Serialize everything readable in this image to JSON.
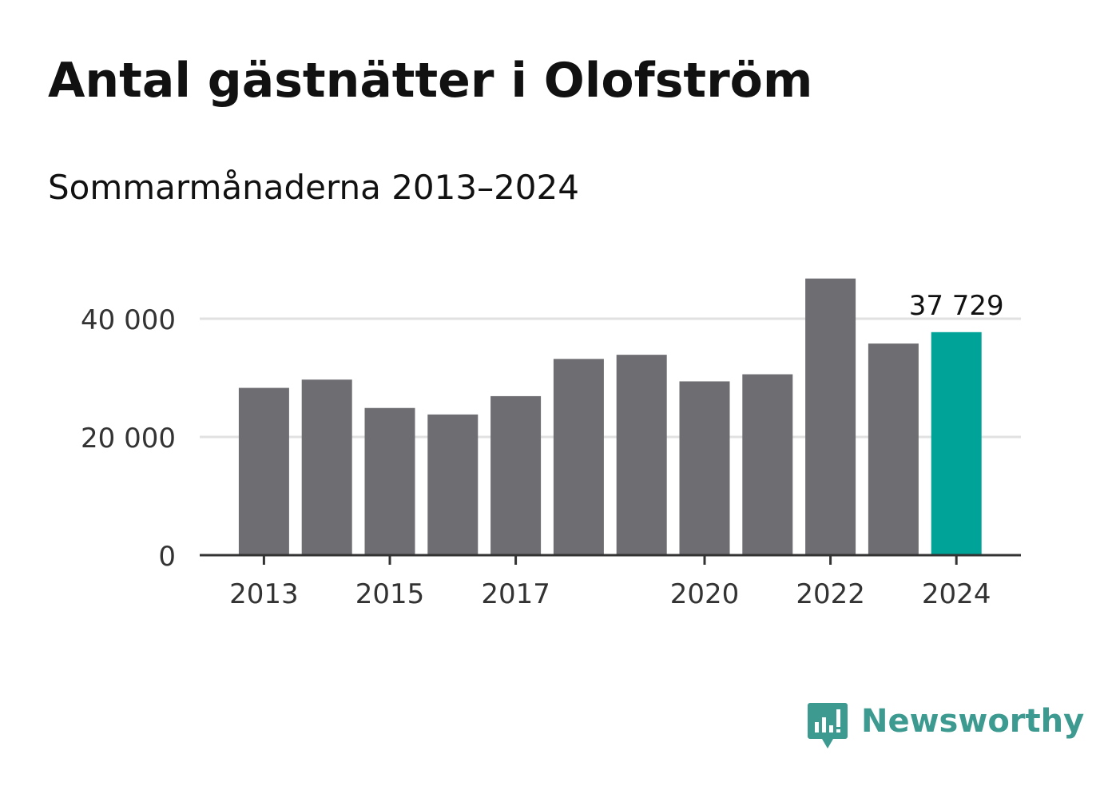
{
  "chart_data": {
    "type": "bar",
    "title": "Antal gästnätter i Olofström",
    "subtitle": "Sommarmånaderna 2013–2024",
    "categories": [
      "2013",
      "2014",
      "2015",
      "2016",
      "2017",
      "2018",
      "2019",
      "2020",
      "2021",
      "2022",
      "2023",
      "2024"
    ],
    "values": [
      28300,
      29700,
      24900,
      23800,
      26900,
      33200,
      33900,
      29400,
      30600,
      46800,
      35800,
      37729
    ],
    "x_tick_labels": [
      "2013",
      "2015",
      "2017",
      "2020",
      "2022",
      "2024"
    ],
    "y_ticks": [
      {
        "value": 0,
        "label": "0"
      },
      {
        "value": 20000,
        "label": "20 000"
      },
      {
        "value": 40000,
        "label": "40 000"
      }
    ],
    "ylim": [
      0,
      50000
    ],
    "grid": true,
    "highlight": {
      "category": "2024",
      "label": "37 729"
    },
    "colors": {
      "bar": "#6e6d72",
      "highlight": "#00a398",
      "grid": "#e1e1e1",
      "axis": "#333333",
      "tick_text": "#333333"
    }
  },
  "logo": {
    "text": "Newsworthy",
    "icon": "newsworthy-chart-bubble-icon",
    "color": "#3c9a91"
  }
}
